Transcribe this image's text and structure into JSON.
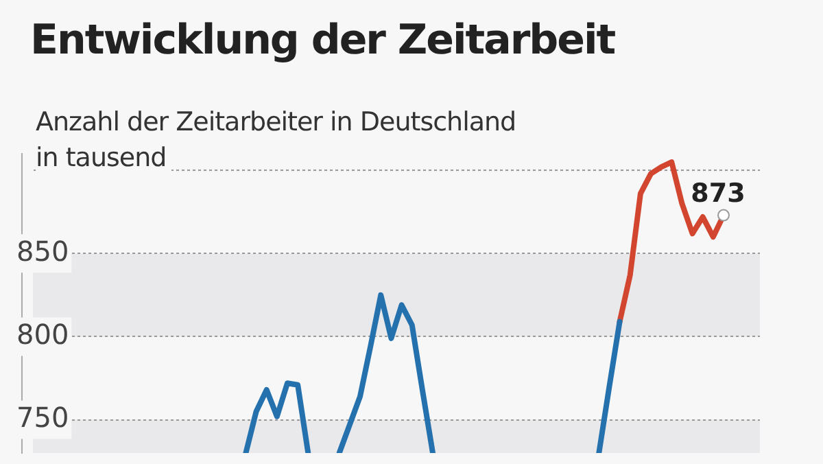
{
  "chart_data": {
    "type": "line",
    "title": "Entwicklung der Zeitarbeit",
    "subtitle": "Anzahl der Zeitarbeiter in Deutschland",
    "ylabel": "in tausend",
    "categories": [
      null,
      null,
      null,
      null,
      null,
      null,
      null,
      null,
      null,
      null,
      null,
      null,
      null,
      null,
      null,
      null,
      null,
      null,
      null,
      null,
      null,
      null,
      null,
      null,
      null,
      null,
      null,
      null,
      null,
      null,
      null,
      null,
      null,
      null,
      null,
      null,
      null,
      null,
      null,
      null,
      null,
      null,
      null,
      null,
      null,
      null,
      null,
      null,
      null,
      null,
      null,
      null,
      null,
      null,
      null,
      null,
      null,
      null,
      null,
      null,
      null,
      null,
      null,
      null,
      null,
      null,
      null,
      null,
      null,
      null
    ],
    "ylim": [
      730,
      910
    ],
    "yticks": [
      750,
      800,
      850,
      {
        "value": 900,
        "label": null
      }
    ],
    "grid": "y",
    "marker": "none",
    "line_style": "solid",
    "bands": [
      {
        "axis": "y",
        "from": 800,
        "to": 850,
        "color": "#e9e9ec"
      },
      {
        "axis": "y",
        "from": 730,
        "to": 750,
        "color": "#e9e9ec"
      }
    ],
    "series": [
      {
        "color": "#2471ad",
        "values": [
          null,
          null,
          null,
          null,
          null,
          null,
          null,
          null,
          null,
          null,
          null,
          null,
          null,
          null,
          null,
          null,
          null,
          null,
          null,
          null,
          730,
          755,
          768,
          752,
          772,
          771,
          730,
          null,
          null,
          730,
          747,
          764,
          794,
          825,
          799,
          819,
          807,
          768,
          730,
          null,
          null,
          null,
          null,
          null,
          null,
          null,
          null,
          null,
          null,
          null,
          null,
          null,
          null,
          null,
          730,
          770,
          809,
          null,
          null,
          null,
          null,
          null,
          null,
          null,
          null,
          null,
          null,
          null,
          null,
          null
        ]
      },
      {
        "color": "#d2452e",
        "values": [
          null,
          null,
          null,
          null,
          null,
          null,
          null,
          null,
          null,
          null,
          null,
          null,
          null,
          null,
          null,
          null,
          null,
          null,
          null,
          null,
          null,
          null,
          null,
          null,
          null,
          null,
          null,
          null,
          null,
          null,
          null,
          null,
          null,
          null,
          null,
          null,
          null,
          null,
          null,
          null,
          null,
          null,
          null,
          null,
          null,
          null,
          null,
          null,
          null,
          null,
          null,
          null,
          null,
          null,
          null,
          null,
          809,
          837,
          886,
          898,
          902,
          905,
          880,
          862,
          872,
          860,
          873,
          null,
          null,
          null
        ],
        "value_labels": [
          null,
          null,
          null,
          null,
          null,
          null,
          null,
          null,
          null,
          null,
          null,
          null,
          null,
          null,
          null,
          null,
          null,
          null,
          null,
          null,
          null,
          null,
          null,
          null,
          null,
          null,
          null,
          null,
          null,
          null,
          null,
          null,
          null,
          null,
          null,
          null,
          null,
          null,
          null,
          null,
          null,
          null,
          null,
          null,
          null,
          null,
          null,
          null,
          null,
          null,
          null,
          null,
          null,
          null,
          null,
          null,
          null,
          null,
          null,
          null,
          null,
          null,
          null,
          null,
          null,
          null,
          "873",
          null,
          null,
          null
        ]
      }
    ]
  }
}
